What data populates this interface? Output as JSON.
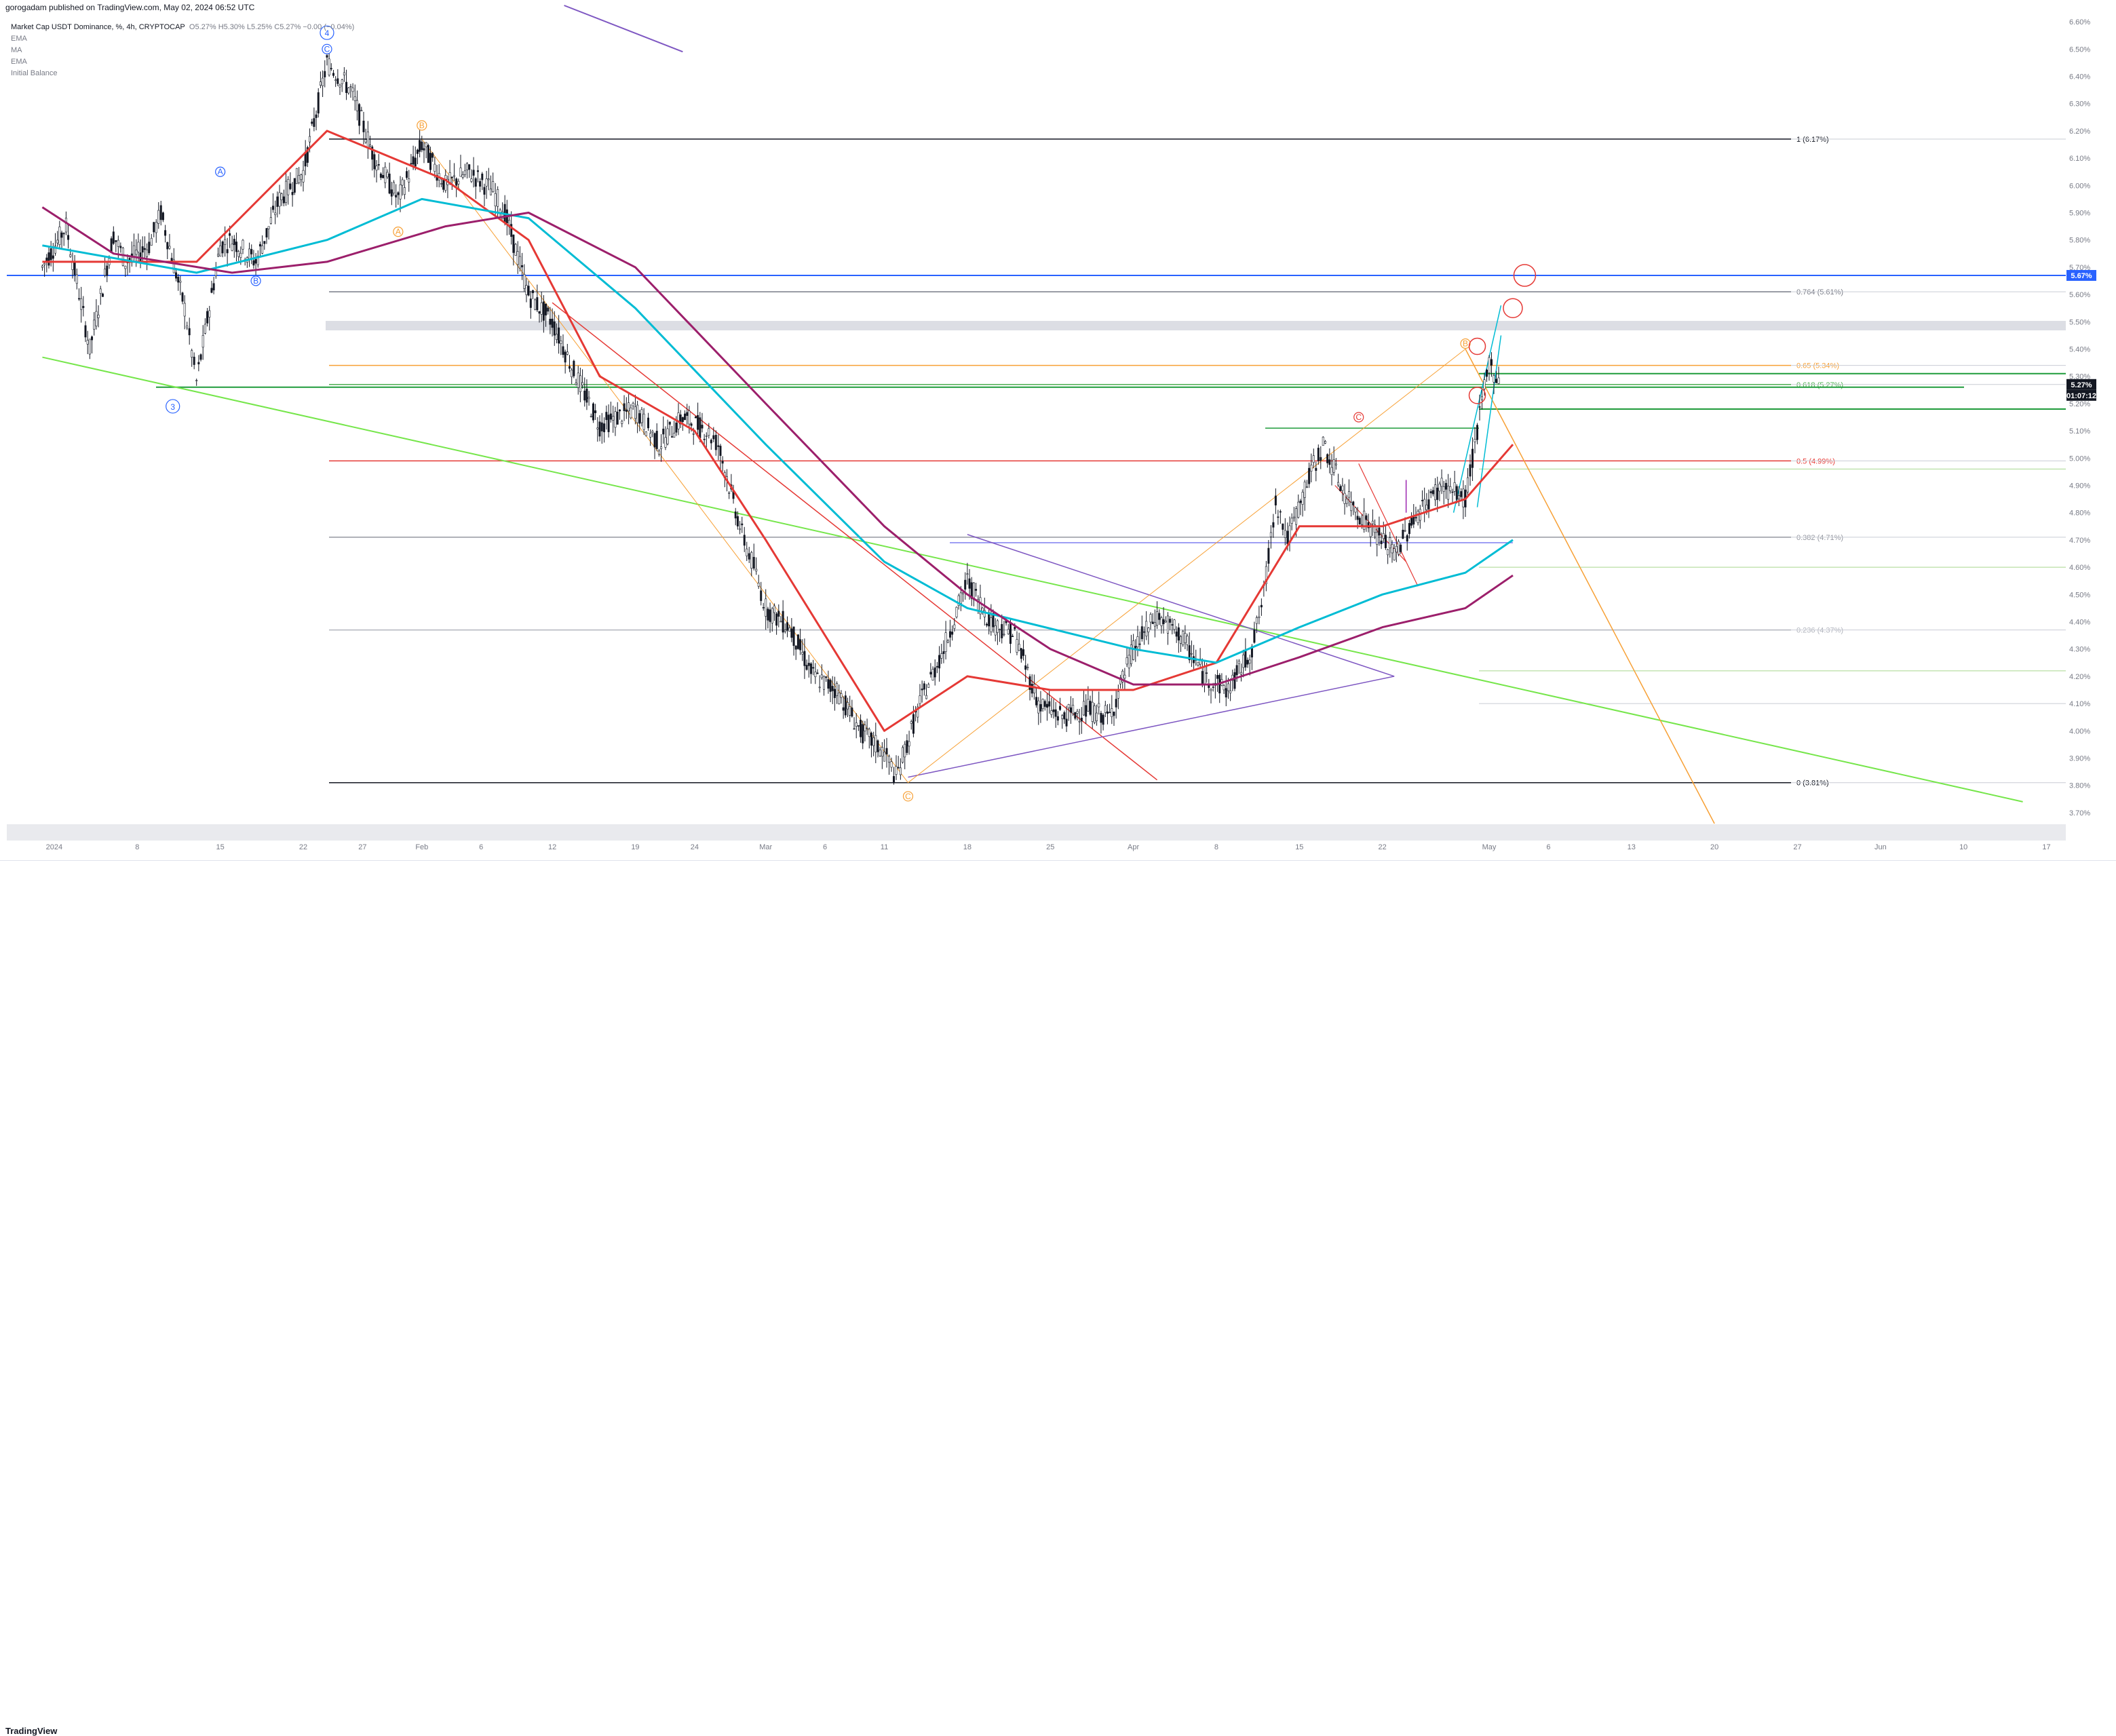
{
  "header": {
    "publisher": "gorogadam published on TradingView.com, May 02, 2024 06:52 UTC"
  },
  "footer": {
    "logo": "TradingView"
  },
  "legend": {
    "symbol": "Market Cap USDT Dominance, %, 4h, CRYPTOCAP",
    "ohlc": "O5.27% H5.30% L5.25% C5.27% −0.00 (−0.04%)",
    "indicators": [
      "EMA",
      "MA",
      "EMA",
      "Initial Balance"
    ]
  },
  "colors": {
    "background": "#ffffff",
    "candle": "#131722",
    "ema_red": "#e53935",
    "ma_teal": "#00bcd4",
    "ema_purple": "#9c1f6b",
    "trend_green": "#76e64b",
    "fib_orange": "#f7a035",
    "triangle_purple": "#7e57c2",
    "blue_level": "#2962ff",
    "green_level": "#1e9b3a",
    "red_level": "#e53935",
    "price_label_bg": "#131722",
    "blue_label_bg": "#2962ff"
  },
  "chart_data": {
    "type": "candlestick",
    "symbol": "USDT.D",
    "timeframe": "4h",
    "ylim": [
      3.66,
      6.66
    ],
    "y_ticks": [
      "6.60%",
      "6.50%",
      "6.40%",
      "6.30%",
      "6.20%",
      "6.10%",
      "6.00%",
      "5.90%",
      "5.80%",
      "5.70%",
      "5.60%",
      "5.50%",
      "5.40%",
      "5.30%",
      "5.20%",
      "5.10%",
      "5.00%",
      "4.90%",
      "4.80%",
      "4.70%",
      "4.60%",
      "4.50%",
      "4.40%",
      "4.30%",
      "4.20%",
      "4.10%",
      "4.00%",
      "3.90%",
      "3.80%",
      "3.70%"
    ],
    "x_ticks": [
      "2024",
      "8",
      "15",
      "22",
      "27",
      "Feb",
      "6",
      "12",
      "19",
      "24",
      "Mar",
      "6",
      "11",
      "18",
      "25",
      "Apr",
      "8",
      "15",
      "22",
      "May",
      "6",
      "13",
      "20",
      "27",
      "Jun",
      "10",
      "17"
    ],
    "x_dates": [
      "2024-01-01",
      "2024-01-08",
      "2024-01-15",
      "2024-01-22",
      "2024-01-27",
      "2024-02-01",
      "2024-02-06",
      "2024-02-12",
      "2024-02-19",
      "2024-02-24",
      "2024-03-01",
      "2024-03-06",
      "2024-03-11",
      "2024-03-18",
      "2024-03-25",
      "2024-04-01",
      "2024-04-08",
      "2024-04-15",
      "2024-04-22",
      "2024-05-01",
      "2024-05-06",
      "2024-05-13",
      "2024-05-20",
      "2024-05-27",
      "2024-06-03",
      "2024-06-10",
      "2024-06-17"
    ],
    "price_path": [
      [
        "2023-12-31",
        5.7
      ],
      [
        "2024-01-02",
        5.85
      ],
      [
        "2024-01-04",
        5.4
      ],
      [
        "2024-01-06",
        5.82
      ],
      [
        "2024-01-07",
        5.72
      ],
      [
        "2024-01-09",
        5.78
      ],
      [
        "2024-01-10",
        5.9
      ],
      [
        "2024-01-12",
        5.55
      ],
      [
        "2024-01-13",
        5.28
      ],
      [
        "2024-01-15",
        5.78
      ],
      [
        "2024-01-16",
        5.8
      ],
      [
        "2024-01-18",
        5.72
      ],
      [
        "2024-01-20",
        5.95
      ],
      [
        "2024-01-22",
        6.05
      ],
      [
        "2024-01-24",
        6.45
      ],
      [
        "2024-01-26",
        6.35
      ],
      [
        "2024-01-28",
        6.1
      ],
      [
        "2024-01-30",
        5.95
      ],
      [
        "2024-02-01",
        6.15
      ],
      [
        "2024-02-03",
        6.0
      ],
      [
        "2024-02-05",
        6.05
      ],
      [
        "2024-02-07",
        5.98
      ],
      [
        "2024-02-08",
        5.9
      ],
      [
        "2024-02-10",
        5.6
      ],
      [
        "2024-02-12",
        5.5
      ],
      [
        "2024-02-14",
        5.3
      ],
      [
        "2024-02-16",
        5.12
      ],
      [
        "2024-02-19",
        5.18
      ],
      [
        "2024-02-21",
        5.05
      ],
      [
        "2024-02-23",
        5.15
      ],
      [
        "2024-02-25",
        5.1
      ],
      [
        "2024-02-26",
        5.05
      ],
      [
        "2024-02-28",
        4.72
      ],
      [
        "2024-02-29",
        4.6
      ],
      [
        "2024-03-01",
        4.45
      ],
      [
        "2024-03-03",
        4.38
      ],
      [
        "2024-03-05",
        4.2
      ],
      [
        "2024-03-07",
        4.15
      ],
      [
        "2024-03-09",
        4.0
      ],
      [
        "2024-03-11",
        3.92
      ],
      [
        "2024-03-12",
        3.83
      ],
      [
        "2024-03-14",
        4.1
      ],
      [
        "2024-03-16",
        4.3
      ],
      [
        "2024-03-18",
        4.55
      ],
      [
        "2024-03-20",
        4.4
      ],
      [
        "2024-03-22",
        4.35
      ],
      [
        "2024-03-24",
        4.1
      ],
      [
        "2024-03-26",
        4.05
      ],
      [
        "2024-03-28",
        4.08
      ],
      [
        "2024-03-30",
        4.05
      ],
      [
        "2024-04-01",
        4.3
      ],
      [
        "2024-04-03",
        4.42
      ],
      [
        "2024-04-05",
        4.35
      ],
      [
        "2024-04-07",
        4.2
      ],
      [
        "2024-04-09",
        4.15
      ],
      [
        "2024-04-11",
        4.3
      ],
      [
        "2024-04-12",
        4.5
      ],
      [
        "2024-04-13",
        4.85
      ],
      [
        "2024-04-14",
        4.7
      ],
      [
        "2024-04-16",
        4.95
      ],
      [
        "2024-04-17",
        5.05
      ],
      [
        "2024-04-19",
        4.85
      ],
      [
        "2024-04-21",
        4.75
      ],
      [
        "2024-04-23",
        4.65
      ],
      [
        "2024-04-25",
        4.8
      ],
      [
        "2024-04-27",
        4.9
      ],
      [
        "2024-04-29",
        4.85
      ],
      [
        "2024-04-30",
        5.1
      ],
      [
        "2024-05-01",
        5.35
      ],
      [
        "2024-05-02",
        5.27
      ]
    ],
    "moving_averages": [
      {
        "name": "EMA",
        "color": "#e53935",
        "points": [
          [
            "2023-12-31",
            5.72
          ],
          [
            "2024-01-13",
            5.72
          ],
          [
            "2024-01-24",
            6.2
          ],
          [
            "2024-02-03",
            6.02
          ],
          [
            "2024-02-10",
            5.8
          ],
          [
            "2024-02-16",
            5.3
          ],
          [
            "2024-02-24",
            5.1
          ],
          [
            "2024-03-01",
            4.7
          ],
          [
            "2024-03-11",
            4.0
          ],
          [
            "2024-03-18",
            4.2
          ],
          [
            "2024-03-25",
            4.15
          ],
          [
            "2024-04-01",
            4.15
          ],
          [
            "2024-04-08",
            4.25
          ],
          [
            "2024-04-15",
            4.75
          ],
          [
            "2024-04-22",
            4.75
          ],
          [
            "2024-04-29",
            4.85
          ],
          [
            "2024-05-03",
            5.05
          ]
        ]
      },
      {
        "name": "MA",
        "color": "#00bcd4",
        "points": [
          [
            "2023-12-31",
            5.78
          ],
          [
            "2024-01-13",
            5.68
          ],
          [
            "2024-01-24",
            5.8
          ],
          [
            "2024-02-01",
            5.95
          ],
          [
            "2024-02-10",
            5.88
          ],
          [
            "2024-02-19",
            5.55
          ],
          [
            "2024-03-01",
            5.05
          ],
          [
            "2024-03-11",
            4.62
          ],
          [
            "2024-03-18",
            4.45
          ],
          [
            "2024-04-01",
            4.3
          ],
          [
            "2024-04-08",
            4.25
          ],
          [
            "2024-04-15",
            4.38
          ],
          [
            "2024-04-22",
            4.5
          ],
          [
            "2024-04-29",
            4.58
          ],
          [
            "2024-05-03",
            4.7
          ]
        ]
      },
      {
        "name": "EMA",
        "color": "#9c1f6b",
        "points": [
          [
            "2023-12-31",
            5.92
          ],
          [
            "2024-01-06",
            5.75
          ],
          [
            "2024-01-16",
            5.68
          ],
          [
            "2024-01-24",
            5.72
          ],
          [
            "2024-02-03",
            5.85
          ],
          [
            "2024-02-10",
            5.9
          ],
          [
            "2024-02-19",
            5.7
          ],
          [
            "2024-03-01",
            5.2
          ],
          [
            "2024-03-11",
            4.75
          ],
          [
            "2024-03-18",
            4.5
          ],
          [
            "2024-03-25",
            4.3
          ],
          [
            "2024-04-01",
            4.17
          ],
          [
            "2024-04-08",
            4.17
          ],
          [
            "2024-04-15",
            4.27
          ],
          [
            "2024-04-22",
            4.38
          ],
          [
            "2024-04-29",
            4.45
          ],
          [
            "2024-05-03",
            4.57
          ]
        ]
      }
    ],
    "fibonacci": [
      {
        "level": "1",
        "price": 6.17,
        "label": "1 (6.17%)",
        "color": "#131722"
      },
      {
        "level": "0.764",
        "price": 5.61,
        "label": "0.764 (5.61%)",
        "color": "#787b86"
      },
      {
        "level": "0.65",
        "price": 5.34,
        "label": "0.65 (5.34%)",
        "color": "#f7a035"
      },
      {
        "level": "0.618",
        "price": 5.27,
        "label": "0.618 (5.27%)",
        "color": "#4caf50"
      },
      {
        "level": "0.5",
        "price": 4.99,
        "label": "0.5 (4.99%)",
        "color": "#e53935"
      },
      {
        "level": "0.382",
        "price": 4.71,
        "label": "0.382 (4.71%)",
        "color": "#9598a1"
      },
      {
        "level": "0.236",
        "price": 4.37,
        "label": "0.236 (4.37%)",
        "color": "#b2b5be"
      },
      {
        "level": "0",
        "price": 3.81,
        "label": "0 (3.81%)",
        "color": "#131722"
      }
    ],
    "horizontal_levels": [
      {
        "name": "blue-level",
        "price": 5.67,
        "color": "#2962ff"
      },
      {
        "name": "green-level-top",
        "price": 5.31,
        "color": "#1e9b3a"
      },
      {
        "name": "green-level-mid",
        "price": 5.26,
        "color": "#1e9b3a"
      },
      {
        "name": "green-level-low",
        "price": 5.18,
        "color": "#1e9b3a"
      }
    ],
    "wave_labels": [
      {
        "text": "4",
        "date": "2024-01-24",
        "price": 6.56,
        "color": "#2962ff"
      },
      {
        "text": "3",
        "date": "2024-01-11",
        "price": 5.19,
        "color": "#2962ff"
      },
      {
        "text": "A",
        "date": "2024-01-15",
        "price": 6.05,
        "color": "#2962ff"
      },
      {
        "text": "B",
        "date": "2024-01-18",
        "price": 5.65,
        "color": "#2962ff"
      },
      {
        "text": "C",
        "date": "2024-01-24",
        "price": 6.5,
        "color": "#2962ff"
      },
      {
        "text": "B",
        "date": "2024-02-01",
        "price": 6.22,
        "color": "#f7a035"
      },
      {
        "text": "A",
        "date": "2024-01-30",
        "price": 5.83,
        "color": "#f7a035"
      },
      {
        "text": "C",
        "date": "2024-03-13",
        "price": 3.76,
        "color": "#f7a035"
      },
      {
        "text": "B",
        "date": "2024-04-29",
        "price": 5.42,
        "color": "#f7a035"
      },
      {
        "text": "C",
        "date": "2024-04-20",
        "price": 5.15,
        "color": "#e53935"
      }
    ],
    "annotations": {
      "current_price": "5.27%",
      "countdown": "01:07:12",
      "blue_level_label": "5.67%"
    }
  }
}
